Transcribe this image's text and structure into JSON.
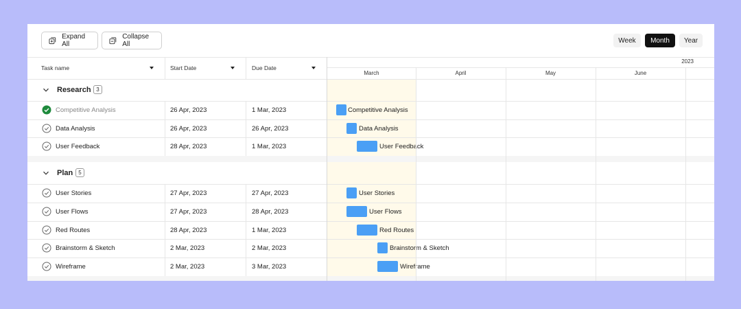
{
  "toolbar": {
    "expand_label": "Expand All",
    "collapse_label": "Collapse All"
  },
  "views": {
    "week": "Week",
    "month": "Month",
    "year": "Year",
    "active": "Month"
  },
  "columns": {
    "task": "Task name",
    "start": "Start Date",
    "due": "Due Date"
  },
  "timeline": {
    "year": "2023",
    "months": [
      "March",
      "April",
      "May",
      "June"
    ]
  },
  "groups": [
    {
      "title": "Research",
      "count": "3",
      "tasks": [
        {
          "name": "Competitive Analysis",
          "start": "26 Apr, 2023",
          "due": "1 Mar, 2023",
          "done": true
        },
        {
          "name": "Data Analysis",
          "start": "26 Apr, 2023",
          "due": "26 Apr, 2023",
          "done": false
        },
        {
          "name": "User Feedback",
          "start": "28 Apr, 2023",
          "due": "1 Mar, 2023",
          "done": false
        }
      ]
    },
    {
      "title": "Plan",
      "count": "5",
      "tasks": [
        {
          "name": "User Stories",
          "start": "27 Apr, 2023",
          "due": "27 Apr, 2023",
          "done": false
        },
        {
          "name": "User Flows",
          "start": "27 Apr, 2023",
          "due": "28 Apr, 2023",
          "done": false
        },
        {
          "name": "Red Routes",
          "start": "28 Apr, 2023",
          "due": "1 Mar, 2023",
          "done": false
        },
        {
          "name": "Brainstorm & Sketch",
          "start": "2 Mar, 2023",
          "due": "2 Mar, 2023",
          "done": false
        },
        {
          "name": "Wireframe",
          "start": "2 Mar, 2023",
          "due": "3 Mar, 2023",
          "done": false
        }
      ]
    }
  ],
  "colors": {
    "background": "#b8bcfa",
    "bar": "#4a9ff5",
    "done_check": "#1e8a3c",
    "current_month": "#fffaea"
  }
}
